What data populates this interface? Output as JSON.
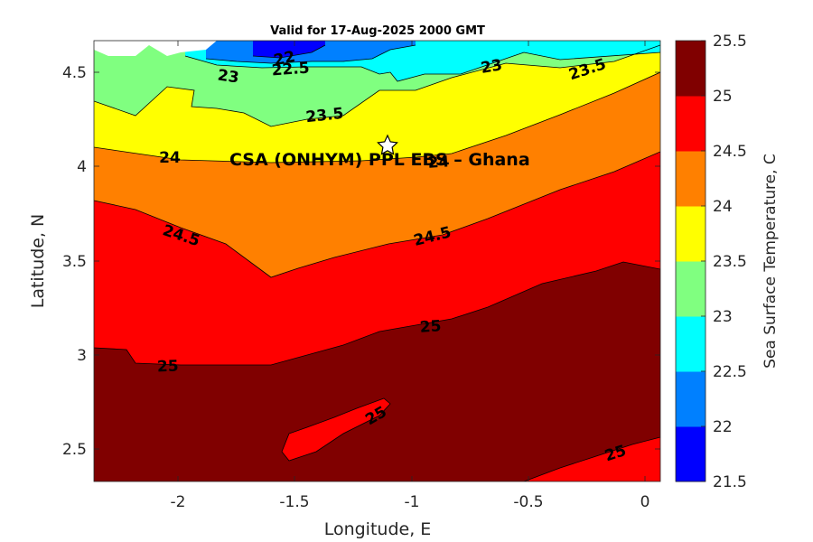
{
  "chart_data": {
    "type": "contour",
    "title": "Valid for 17-Aug-2025 2000 GMT",
    "xlabel": "Longitude, E",
    "ylabel": "Latitude, N",
    "xlim": [
      -2.35,
      0.07
    ],
    "ylim": [
      2.33,
      4.66
    ],
    "x_ticks": [
      "-2",
      "-1.5",
      "-1",
      "-0.5",
      "0"
    ],
    "y_ticks": [
      "2.5",
      "3",
      "3.5",
      "4",
      "4.5"
    ],
    "colorbar": {
      "label": "Sea Surface Temperature, C",
      "levels": [
        21.5,
        22,
        22.5,
        23,
        23.5,
        24,
        24.5,
        25,
        25.5
      ],
      "tick_labels": [
        "21.5",
        "22",
        "22.5",
        "23",
        "23.5",
        "24",
        "24.5",
        "25",
        "25.5"
      ],
      "colors": [
        "#0000ff",
        "#0080ff",
        "#00ffff",
        "#80ff80",
        "#ffff00",
        "#ff8000",
        "#ff0000",
        "#800000"
      ]
    },
    "contour_labels": [
      "22",
      "22.5",
      "23",
      "23",
      "23.5",
      "23.5",
      "24",
      "24",
      "24.5",
      "24.5",
      "25",
      "25",
      "25",
      "25"
    ],
    "annotation": {
      "text": "CSA (ONHYM) PPL EBS  – Ghana",
      "lon": -1.1,
      "lat": 4.1,
      "marker": "star"
    }
  }
}
